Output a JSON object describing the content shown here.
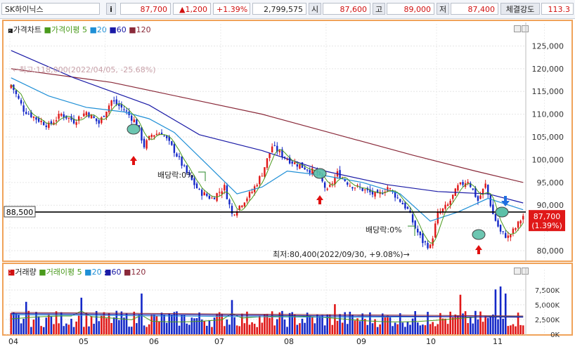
{
  "header": {
    "stock_name": "SK하이닉스",
    "info_icon": "i",
    "price": "87,700",
    "change": "▲1,200",
    "change_pct": "+1.39%",
    "volume": "2,799,575",
    "open_label": "시",
    "open": "87,600",
    "high_label": "고",
    "high": "89,000",
    "low_label": "저",
    "low": "87,400",
    "strength_label": "체결강도",
    "strength": "113.3"
  },
  "price_panel": {
    "title_main": "가격차트",
    "title_ma": "가격이평",
    "ma_periods": [
      "5",
      "20",
      "60",
      "120"
    ],
    "ma_colors": [
      "#4a9a1c",
      "#1f8fd6",
      "#1a1aa6",
      "#8a2a3a"
    ],
    "annotation_high": "최고:118,000(2022/04/05, -25.68%)",
    "annotation_low": "최저:80,400(2022/09/30, +9.08%)",
    "dividend_label": "배당락:0%",
    "current_line_label": "88,500",
    "current_price_label": "87,700",
    "current_pct_label": "(1.39%)"
  },
  "volume_panel": {
    "title_main": "거래량",
    "title_ma": "거래이평",
    "ma_periods": [
      "5",
      "20",
      "60",
      "120"
    ]
  },
  "x_months": [
    "04",
    "05",
    "06",
    "07",
    "08",
    "09",
    "10",
    "11"
  ],
  "chart_data": {
    "type": "candlestick",
    "price_ylim": [
      78000,
      128000
    ],
    "price_ticks": [
      80000,
      85000,
      90000,
      95000,
      100000,
      105000,
      110000,
      115000,
      120000,
      125000
    ],
    "volume_ylim": [
      0,
      10000000
    ],
    "volume_ticks": [
      0,
      2500000,
      5000000,
      7500000
    ],
    "volume_tick_labels": [
      "0K",
      "2,500K",
      "5,000K",
      "7,500K"
    ],
    "reference_line": 88500,
    "anchor_closes": [
      [
        0,
        116500
      ],
      [
        5,
        111000
      ],
      [
        10,
        109000
      ],
      [
        15,
        107500
      ],
      [
        20,
        110000
      ],
      [
        25,
        108500
      ],
      [
        30,
        110500
      ],
      [
        35,
        108000
      ],
      [
        40,
        113000
      ],
      [
        45,
        111000
      ],
      [
        50,
        108000
      ],
      [
        53,
        103000
      ],
      [
        56,
        105500
      ],
      [
        60,
        106000
      ],
      [
        65,
        102000
      ],
      [
        70,
        97000
      ],
      [
        75,
        93000
      ],
      [
        80,
        91500
      ],
      [
        85,
        94000
      ],
      [
        88,
        88000
      ],
      [
        92,
        90500
      ],
      [
        96,
        93000
      ],
      [
        100,
        97000
      ],
      [
        104,
        103000
      ],
      [
        108,
        101000
      ],
      [
        112,
        99500
      ],
      [
        118,
        98000
      ],
      [
        122,
        97000
      ],
      [
        126,
        93000
      ],
      [
        130,
        97000
      ],
      [
        135,
        94500
      ],
      [
        140,
        93500
      ],
      [
        146,
        92000
      ],
      [
        150,
        94000
      ],
      [
        155,
        91000
      ],
      [
        158,
        89000
      ],
      [
        161,
        85000
      ],
      [
        164,
        82000
      ],
      [
        167,
        80800
      ],
      [
        170,
        88000
      ],
      [
        174,
        90000
      ],
      [
        178,
        94000
      ],
      [
        182,
        95500
      ],
      [
        186,
        91000
      ],
      [
        189,
        94500
      ],
      [
        192,
        88000
      ],
      [
        195,
        84000
      ],
      [
        198,
        83000
      ],
      [
        201,
        85000
      ],
      [
        204,
        87700
      ]
    ],
    "ma20": [
      [
        0,
        118000
      ],
      [
        15,
        114000
      ],
      [
        30,
        111500
      ],
      [
        45,
        110500
      ],
      [
        55,
        109000
      ],
      [
        65,
        106000
      ],
      [
        78,
        99000
      ],
      [
        90,
        92500
      ],
      [
        100,
        94000
      ],
      [
        110,
        97500
      ],
      [
        125,
        96500
      ],
      [
        140,
        95000
      ],
      [
        155,
        92500
      ],
      [
        167,
        86500
      ],
      [
        178,
        88500
      ],
      [
        190,
        91500
      ],
      [
        204,
        89000
      ]
    ],
    "ma60": [
      [
        0,
        124000
      ],
      [
        25,
        118000
      ],
      [
        55,
        112000
      ],
      [
        75,
        105500
      ],
      [
        100,
        102000
      ],
      [
        125,
        97500
      ],
      [
        150,
        94500
      ],
      [
        170,
        93000
      ],
      [
        190,
        92500
      ],
      [
        204,
        90500
      ]
    ],
    "ma120": [
      [
        0,
        120000
      ],
      [
        40,
        117000
      ],
      [
        70,
        113500
      ],
      [
        100,
        110000
      ],
      [
        130,
        105500
      ],
      [
        160,
        101000
      ],
      [
        185,
        97500
      ],
      [
        204,
        95000
      ]
    ],
    "volume_spikes": [
      [
        6,
        5500000
      ],
      [
        28,
        6200000
      ],
      [
        52,
        6900000
      ],
      [
        88,
        5800000
      ],
      [
        129,
        5100000
      ],
      [
        166,
        3800000
      ],
      [
        179,
        6700000
      ],
      [
        193,
        7600000
      ],
      [
        195,
        8100000
      ],
      [
        197,
        6900000
      ]
    ]
  }
}
